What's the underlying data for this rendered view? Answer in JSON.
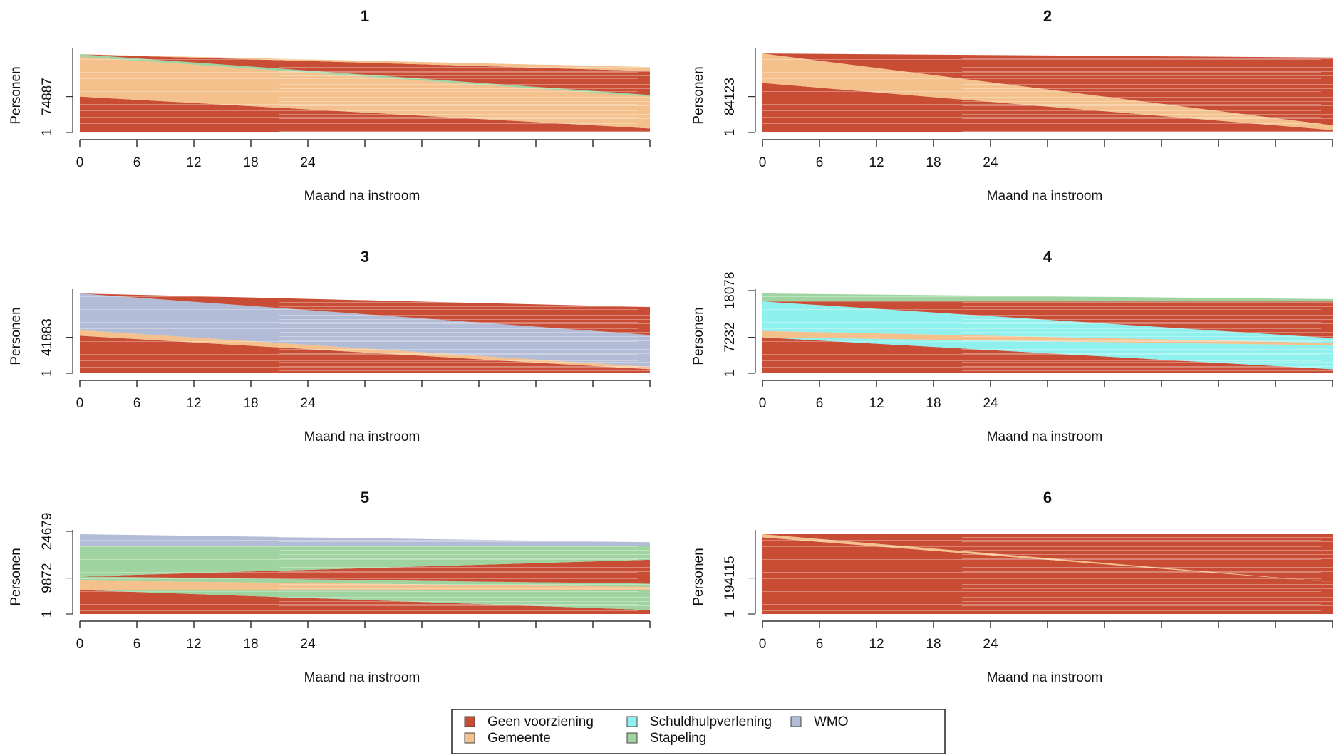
{
  "chart_data": {
    "type": "area",
    "description_kind": "state sequence index plots",
    "state_colors": {
      "geen": "#c94c35",
      "gemeente": "#f4c08b",
      "schuld": "#8ff0ee",
      "stapeling": "#9fd4a0",
      "wmo": "#b3bcd6"
    },
    "x_axis": {
      "label": "Maand na instroom",
      "range": [
        0,
        60
      ],
      "tick_labels": [
        "0",
        "6",
        "12",
        "18",
        "24"
      ],
      "unlabeled_ticks": [
        30,
        36,
        42,
        48,
        54,
        60
      ]
    },
    "y_axis_label": "Personen",
    "legend": {
      "position": "bottom-center",
      "entries": [
        {
          "key": "geen",
          "label": "Geen voorziening"
        },
        {
          "key": "gemeente",
          "label": "Gemeente"
        },
        {
          "key": "schuld",
          "label": "Schuldhulpverlening"
        },
        {
          "key": "stapeling",
          "label": "Stapeling"
        },
        {
          "key": "wmo",
          "label": "WMO"
        }
      ]
    },
    "panels": [
      {
        "title": "1",
        "y_tick_labels": [
          "1",
          "74887"
        ],
        "layers": [
          {
            "state": "geen",
            "start": 0.45,
            "end": 0.05
          },
          {
            "state": "gemeente",
            "start": 0.5,
            "end": 0.4
          },
          {
            "state": "stapeling",
            "start": 0.03,
            "end": 0.02
          },
          {
            "state": "geen",
            "start": 0.0,
            "end": 0.3
          },
          {
            "state": "gemeente",
            "start": 0.0,
            "end": 0.05
          }
        ]
      },
      {
        "title": "2",
        "y_tick_labels": [
          "1",
          "84123"
        ],
        "layers": [
          {
            "state": "geen",
            "start": 0.62,
            "end": 0.03
          },
          {
            "state": "gemeente",
            "start": 0.37,
            "end": 0.06
          },
          {
            "state": "geen",
            "start": 0.0,
            "end": 0.85
          }
        ]
      },
      {
        "title": "3",
        "y_tick_labels": [
          "1",
          "41883"
        ],
        "layers": [
          {
            "state": "geen",
            "start": 0.47,
            "end": 0.05
          },
          {
            "state": "gemeente",
            "start": 0.07,
            "end": 0.03
          },
          {
            "state": "wmo",
            "start": 0.46,
            "end": 0.4
          },
          {
            "state": "geen",
            "start": 0.0,
            "end": 0.35
          }
        ]
      },
      {
        "title": "4",
        "y_tick_labels": [
          "1",
          "7232",
          "18078"
        ],
        "layers": [
          {
            "state": "geen",
            "start": 0.45,
            "end": 0.05
          },
          {
            "state": "schuld",
            "start": 0.0,
            "end": 0.3
          },
          {
            "state": "gemeente",
            "start": 0.08,
            "end": 0.03
          },
          {
            "state": "schuld",
            "start": 0.37,
            "end": 0.06
          },
          {
            "state": "geen",
            "start": 0.0,
            "end": 0.46
          },
          {
            "state": "stapeling",
            "start": 0.1,
            "end": 0.03
          }
        ]
      },
      {
        "title": "5",
        "y_tick_labels": [
          "1",
          "9872",
          "24679"
        ],
        "layers": [
          {
            "state": "geen",
            "start": 0.3,
            "end": 0.05
          },
          {
            "state": "stapeling",
            "start": 0.0,
            "end": 0.25
          },
          {
            "state": "gemeente",
            "start": 0.12,
            "end": 0.04
          },
          {
            "state": "stapeling",
            "start": 0.05,
            "end": 0.04
          },
          {
            "state": "geen",
            "start": 0.0,
            "end": 0.3
          },
          {
            "state": "stapeling",
            "start": 0.38,
            "end": 0.17
          },
          {
            "state": "wmo",
            "start": 0.15,
            "end": 0.05
          }
        ]
      },
      {
        "title": "6",
        "y_tick_labels": [
          "1",
          "194115"
        ],
        "layers": [
          {
            "state": "geen",
            "start": 0.96,
            "end": 0.4
          },
          {
            "state": "gemeente",
            "start": 0.04,
            "end": 0.0
          },
          {
            "state": "geen",
            "start": 0.0,
            "end": 0.6
          }
        ]
      }
    ]
  }
}
